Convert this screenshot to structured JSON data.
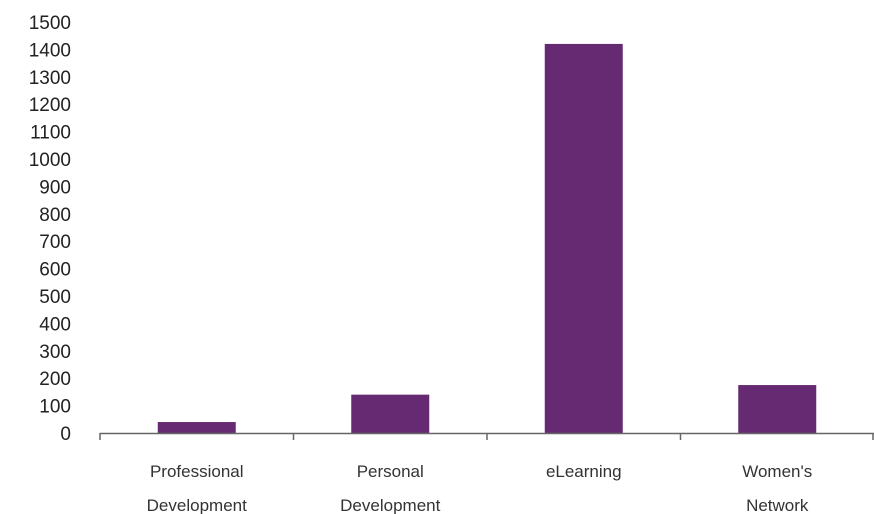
{
  "colors": {
    "bar": "#662a73",
    "axis": "#666666",
    "text": "#222222"
  },
  "chart_data": {
    "type": "bar",
    "categories": [
      [
        "Professional",
        "Development"
      ],
      [
        "Personal",
        "Development"
      ],
      [
        "eLearning"
      ],
      [
        "Women's",
        "Network"
      ]
    ],
    "values": [
      40,
      140,
      1420,
      175
    ],
    "ylim": [
      0,
      1500
    ],
    "yticks": [
      "0",
      "100",
      "200",
      "300",
      "400",
      "500",
      "600",
      "700",
      "800",
      "900",
      "1000",
      "1100",
      "1200",
      "1300",
      "1400",
      "1500"
    ],
    "grid": false,
    "legend": "none"
  }
}
